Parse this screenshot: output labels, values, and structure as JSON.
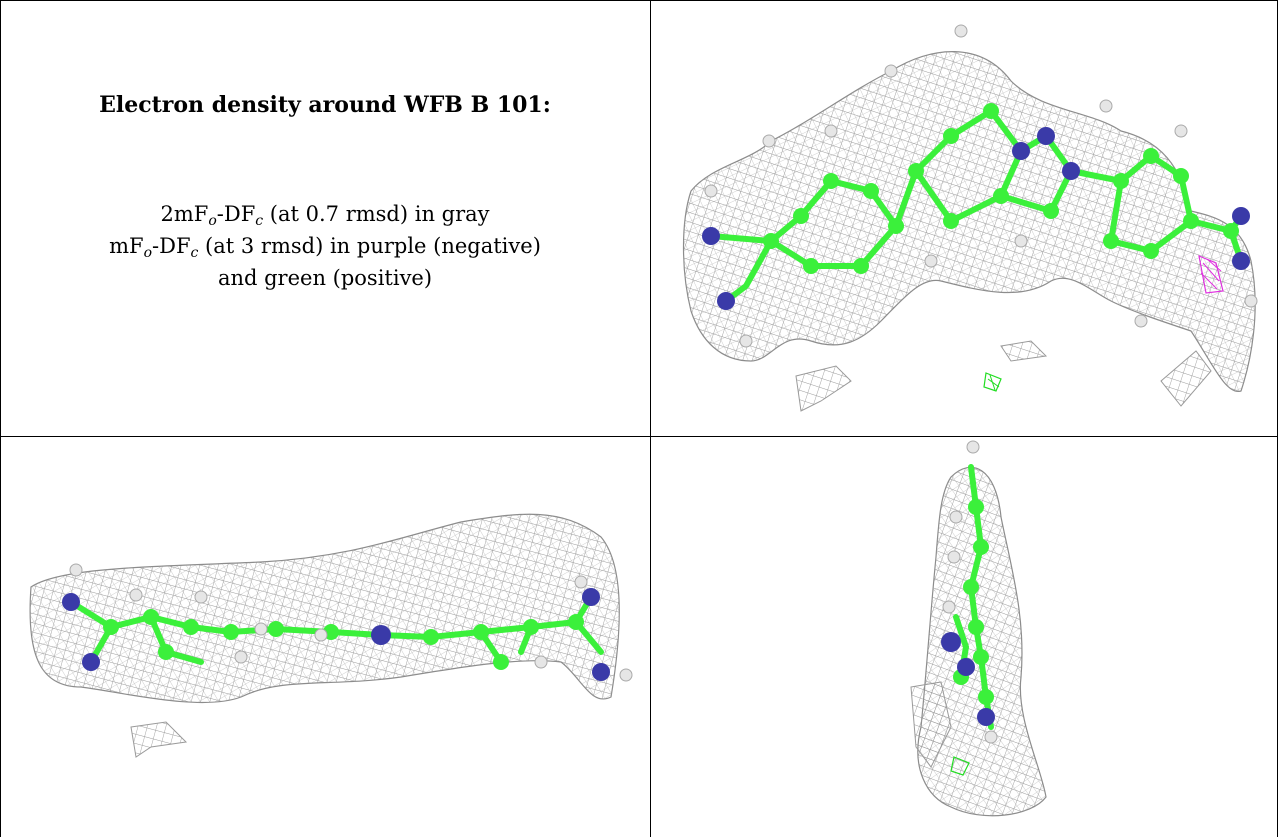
{
  "caption": {
    "title": "Electron density around WFB B 101:",
    "line1": {
      "pre": "2mF",
      "sub1": "o",
      "mid": "-DF",
      "sub2": "c",
      "post": " (at 0.7 rmsd) in gray"
    },
    "line2": {
      "pre": "mF",
      "sub1": "o",
      "mid": "-DF",
      "sub2": "c",
      "post": " (at 3 rmsd) in purple (negative)"
    },
    "line3": "and green (positive)"
  },
  "colors": {
    "mesh": "#9a9a9a",
    "carbon": "#3bf03b",
    "nitrogen": "#3a3aa8",
    "hydrogen": "#e6e6e6",
    "negative_density": "#e030e0",
    "positive_density": "#22dd22",
    "rule": "#000000"
  },
  "panels": [
    {
      "view": "top-right view of WFB B 101 with density mesh"
    },
    {
      "view": "bottom-left side view of WFB B 101 with density mesh"
    },
    {
      "view": "bottom-right end-on view of WFB B 101 with density mesh"
    }
  ]
}
